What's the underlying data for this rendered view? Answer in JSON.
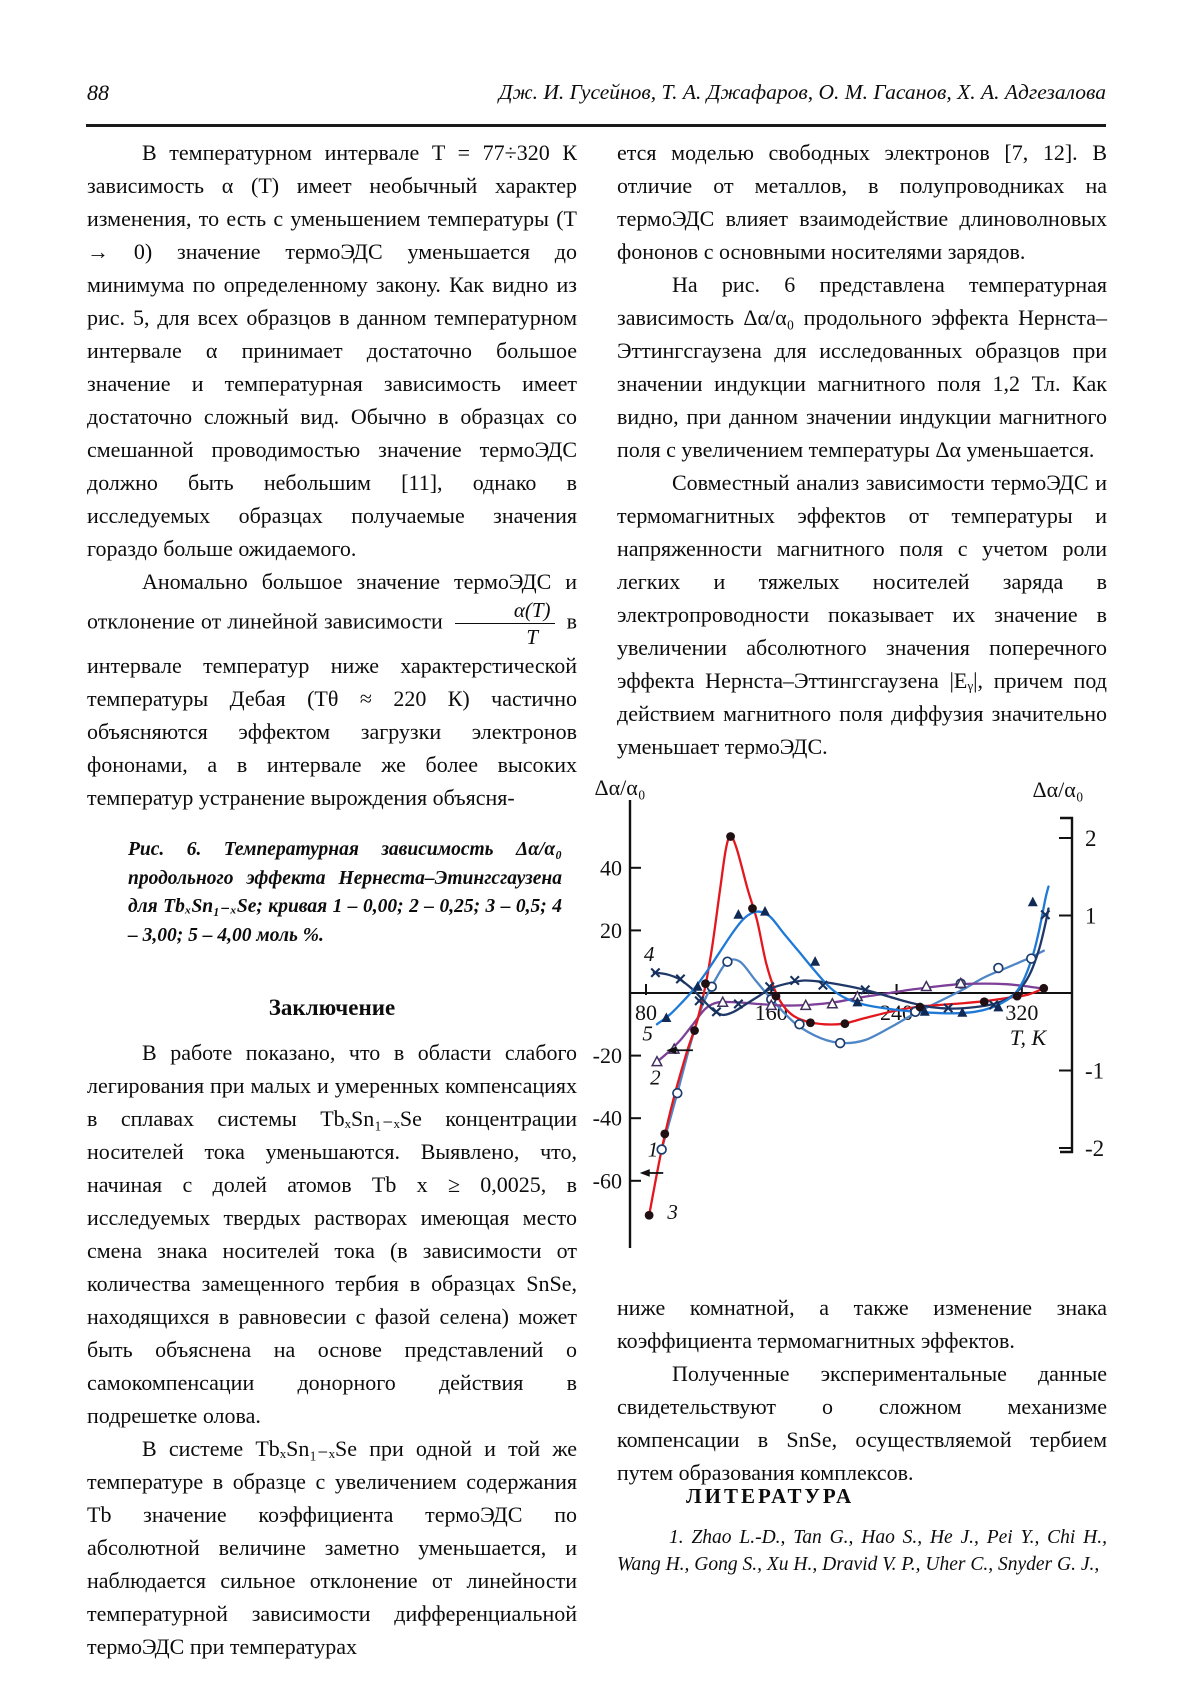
{
  "header": {
    "page_number": "88",
    "authors": "Дж. И. Гусейнов, Т. А. Джафаров, О. М. Гасанов, Х. А. Адгезалова"
  },
  "left_column": {
    "p1": "В температурном интервале T = 77÷320 К зависимость α (T) имеет необычный характер изменения, то есть с уменьшением температуры (T → 0) значение термоЭДС уменьшается до минимума по определенному закону. Как видно из рис. 5, для всех образцов в данном температурном интервале α принимает достаточно большое значение и температурная зависимость имеет достаточно сложный вид. Обычно в образцах со смешанной проводимостью значение термоЭДС должно быть небольшим [11], однако в исследуемых образцах получаемые значения гораздо больше ожидаемого.",
    "p2_before": "Аномально большое значение термоЭДС и отклонение от линейной зависимости",
    "fraction": {
      "numerator": "α(T)",
      "denominator": "T"
    },
    "p2_after": "в интервале температур ниже характерстической температуры Дебая (Tθ ≈ 220 К) частично объясняются эффектом загрузки электронов фононами, а в интервале же более высоких температур устранение вырождения объясня-",
    "figure_caption": "Рис. 6. Температурная зависимость Δα/α₀ продольного эффекта Нернеста–Этингсгаузена для TbₓSn₁₋ₓSe; кривая 1 – 0,00; 2 – 0,25; 3 – 0,5; 4 – 3,00; 5 – 4,00 моль %.",
    "conclusion_heading": "Заключение",
    "c1": "В работе показано, что в области слабого легирования при малых и умеренных компенсациях в сплавах системы TbₓSn₁₋ₓSe концентрации носителей тока уменьшаются. Выявлено, что, начиная с долей атомов Tb x ≥ 0,0025, в исследуемых твердых растворах имеющая место смена знака носителей тока (в зависимости от количества замещенного тербия в образцах SnSe, находящихся в равновесии с фазой селена) может быть объяснена на основе представлений о самокомпенсации донорного действия в подрешетке олова.",
    "c2": "В системе TbₓSn₁₋ₓSe при одной и той же температуре в образце с увеличением содержания Tb значение коэффициента термоЭДС по абсолютной величине заметно уменьшается, и наблюдается сильное отклонение от линейности температурной зависимости дифференциальной термоЭДС при температурах"
  },
  "right_column": {
    "r1": "ется моделью свободных электронов [7, 12]. В отличие от металлов, в полупроводниках на термоЭДС влияет взаимодействие длиноволновых фононов с основными носителями зарядов.",
    "r2": "На рис. 6 представлена температурная зависимость Δα/α₀ продольного эффекта Нернста–Эттингсгаузена для исследованных образцов при значении индукции магнитного поля 1,2 Тл. Как видно, при данном значении индукции магнитного поля с увеличением температуры Δα уменьшается.",
    "r3": "Совместный анализ зависимости термоЭДС и термомагнитных эффектов от температуры и напряженности магнитного поля с учетом роли легких и тяжелых носителей заряда в электропроводности показывает их значение в увеличении абсолютного значения поперечного эффекта Нернста–Эттингсгаузена |Eᵧ|, причем под действием магнитного поля диффузия значительно уменьшает термоЭДС.",
    "r4": "ниже комнатной, а также изменение знака коэффициента термомагнитных эффектов.",
    "r5": "Полученные экспериментальные данные свидетельствуют о сложном механизме компенсации в SnSe, осуществляемой тербием путем образования комплексов.",
    "literature_heading": "ЛИТЕРАТУРА",
    "reference_1": "1. Zhao L.-D., Tan G., Hao S., He J., Pei Y., Chi H., Wang H., Gong S., Xu H., Dravid V. P., Uher C., Snyder G. J.,"
  },
  "chart_data": {
    "type": "line",
    "title": "Температурная зависимость Δα/α₀ продольного эффекта Нернста–Эттингсгаузена для TbxSn1-xSe",
    "xlabel": "T, K",
    "ylabel_left": "Δα/α₀",
    "ylabel_right": "Δα/α₀",
    "x_ticks": [
      80,
      160,
      240,
      320
    ],
    "x_range": [
      70,
      352
    ],
    "y_left_ticks": [
      40,
      20,
      -20,
      -40,
      -60
    ],
    "y_left_range": [
      -78,
      55
    ],
    "y_right_ticks": [
      2,
      1,
      -1,
      -2
    ],
    "y_right_range": [
      -2.3,
      2.3
    ],
    "grid": false,
    "legend": "curve numbers printed beside curves",
    "series": [
      {
        "name": "1 – 0,00 моль %",
        "label": "1",
        "color": "#4f86c6",
        "marker": "open-circle",
        "marker_color": "#1d3c6e",
        "points": [
          [
            90,
            -50
          ],
          [
            100,
            -32
          ],
          [
            108,
            -17
          ],
          [
            116,
            -4
          ],
          [
            124,
            4
          ],
          [
            132,
            10
          ],
          [
            140,
            10
          ],
          [
            150,
            4
          ],
          [
            162,
            -3
          ],
          [
            176,
            -10
          ],
          [
            192,
            -14.5
          ],
          [
            206,
            -16
          ],
          [
            220,
            -15
          ],
          [
            236,
            -11
          ],
          [
            250,
            -7
          ],
          [
            266,
            -3
          ],
          [
            282,
            1
          ],
          [
            296,
            5
          ],
          [
            310,
            8
          ],
          [
            324,
            11
          ],
          [
            334,
            13.5
          ]
        ],
        "marker_points": [
          [
            90,
            -50
          ],
          [
            100,
            -32
          ],
          [
            122,
            2
          ],
          [
            132,
            10
          ],
          [
            160,
            -2
          ],
          [
            178,
            -10
          ],
          [
            204,
            -16
          ],
          [
            252,
            -6
          ],
          [
            281,
            3
          ],
          [
            305,
            8
          ],
          [
            326,
            11
          ]
        ]
      },
      {
        "name": "2 – 0,25 моль %",
        "label": "2",
        "color": "#7d3f98",
        "marker": "open-triangle",
        "marker_color": "#40305c",
        "points": [
          [
            87,
            -22
          ],
          [
            94,
            -19
          ],
          [
            102,
            -15
          ],
          [
            110,
            -10
          ],
          [
            118,
            -5
          ],
          [
            126,
            -3
          ],
          [
            138,
            -3
          ],
          [
            152,
            -3.5
          ],
          [
            168,
            -4
          ],
          [
            184,
            -3.8
          ],
          [
            200,
            -3
          ],
          [
            216,
            -1.5
          ],
          [
            232,
            -0.3
          ],
          [
            248,
            1
          ],
          [
            264,
            2
          ],
          [
            280,
            2.8
          ],
          [
            296,
            3
          ],
          [
            310,
            2.8
          ],
          [
            322,
            2.2
          ],
          [
            332,
            1.5
          ]
        ],
        "marker_points": [
          [
            87,
            -22
          ],
          [
            98,
            -18
          ],
          [
            129,
            -3
          ],
          [
            160,
            -4
          ],
          [
            182,
            -4
          ],
          [
            199,
            -3.5
          ],
          [
            215,
            -1.2
          ],
          [
            259,
            2
          ],
          [
            281,
            3
          ]
        ]
      },
      {
        "name": "3 – 0,5 моль %",
        "label": "3",
        "color": "#e2181e",
        "marker": "filled-circle",
        "marker_color": "#201014",
        "points": [
          [
            82,
            -71
          ],
          [
            90,
            -50
          ],
          [
            98,
            -33
          ],
          [
            106,
            -19
          ],
          [
            112,
            -10
          ],
          [
            117,
            0
          ],
          [
            122,
            14
          ],
          [
            127,
            32
          ],
          [
            131,
            46
          ],
          [
            134,
            50
          ],
          [
            138,
            46
          ],
          [
            145,
            33
          ],
          [
            151,
            23
          ],
          [
            157,
            9
          ],
          [
            164,
            -1
          ],
          [
            172,
            -6.5
          ],
          [
            182,
            -9
          ],
          [
            194,
            -10
          ],
          [
            206,
            -9.8
          ],
          [
            220,
            -8
          ],
          [
            236,
            -6
          ],
          [
            252,
            -4.5
          ],
          [
            268,
            -3.8
          ],
          [
            284,
            -3.2
          ],
          [
            298,
            -2.5
          ],
          [
            312,
            -1.5
          ],
          [
            324,
            -0.5
          ],
          [
            334,
            1.5
          ]
        ],
        "marker_points": [
          [
            82,
            -71
          ],
          [
            92,
            -45
          ],
          [
            111,
            -12
          ],
          [
            118,
            3
          ],
          [
            134,
            50
          ],
          [
            148,
            27
          ],
          [
            163,
            -1
          ],
          [
            185,
            -9.5
          ],
          [
            207,
            -9.8
          ],
          [
            255,
            -4.5
          ],
          [
            296,
            -2.8
          ],
          [
            317,
            -1
          ],
          [
            334,
            1.5
          ]
        ]
      },
      {
        "name": "4 – 3,00 моль %",
        "label": "4",
        "color": "#1f3868",
        "marker": "x",
        "marker_color": "#16305e",
        "points": [
          [
            85,
            6.5
          ],
          [
            93,
            6
          ],
          [
            101,
            4.5
          ],
          [
            109,
            1.5
          ],
          [
            116,
            -2
          ],
          [
            123,
            -5.5
          ],
          [
            129,
            -7
          ],
          [
            136,
            -6
          ],
          [
            144,
            -3.5
          ],
          [
            152,
            -1
          ],
          [
            160,
            1.5
          ],
          [
            170,
            3
          ],
          [
            181,
            4
          ],
          [
            193,
            3.5
          ],
          [
            206,
            2.5
          ],
          [
            220,
            1
          ],
          [
            234,
            -1
          ],
          [
            248,
            -3
          ],
          [
            262,
            -4.5
          ],
          [
            276,
            -5
          ],
          [
            290,
            -4.5
          ],
          [
            302,
            -3.5
          ],
          [
            312,
            -1.5
          ],
          [
            320,
            2
          ],
          [
            326,
            7
          ],
          [
            331,
            14
          ],
          [
            335,
            22
          ],
          [
            337,
            27
          ]
        ],
        "marker_points": [
          [
            86,
            6.5
          ],
          [
            102,
            4.5
          ],
          [
            114,
            -2.5
          ],
          [
            125,
            -6
          ],
          [
            139,
            -3.5
          ],
          [
            159,
            2
          ],
          [
            175,
            4
          ],
          [
            193,
            2.5
          ],
          [
            220,
            1
          ],
          [
            273,
            -4.8
          ],
          [
            302,
            -3.8
          ],
          [
            335,
            25
          ]
        ]
      },
      {
        "name": "5 – 4,00 моль %",
        "label": "5",
        "color": "#1e7ad6",
        "marker": "filled-triangle",
        "marker_color": "#0e2a55",
        "points": [
          [
            87,
            -10
          ],
          [
            95,
            -7
          ],
          [
            103,
            -3
          ],
          [
            111,
            1.5
          ],
          [
            119,
            7
          ],
          [
            127,
            13
          ],
          [
            135,
            19
          ],
          [
            143,
            24
          ],
          [
            151,
            26
          ],
          [
            159,
            24.5
          ],
          [
            168,
            19
          ],
          [
            178,
            13
          ],
          [
            188,
            7
          ],
          [
            198,
            1.5
          ],
          [
            208,
            -1.8
          ],
          [
            220,
            -3.8
          ],
          [
            234,
            -5
          ],
          [
            248,
            -5.8
          ],
          [
            262,
            -6.3
          ],
          [
            276,
            -6.5
          ],
          [
            290,
            -6
          ],
          [
            300,
            -4.8
          ],
          [
            308,
            -3
          ],
          [
            315,
            -0.5
          ],
          [
            321,
            4
          ],
          [
            327,
            12
          ],
          [
            331,
            20
          ],
          [
            335,
            30
          ],
          [
            337,
            34
          ]
        ],
        "marker_points": [
          [
            93,
            -8
          ],
          [
            113,
            2
          ],
          [
            139,
            25
          ],
          [
            156,
            26
          ],
          [
            188,
            10
          ],
          [
            215,
            -3
          ],
          [
            258,
            -6
          ],
          [
            282,
            -6.3
          ],
          [
            305,
            -4.6
          ],
          [
            327,
            29
          ]
        ]
      }
    ],
    "curve_labels": [
      {
        "text": "4",
        "t": 82,
        "v": 12.5
      },
      {
        "text": "5",
        "t": 81,
        "v": -13
      },
      {
        "text": "2",
        "t": 86,
        "v": -27
      },
      {
        "text": "1",
        "t": 84.5,
        "v": -50
      },
      {
        "text": "3",
        "t": 97,
        "v": -70
      }
    ],
    "arrows": [
      {
        "t_from": 110,
        "t_to": 93,
        "v": -18.3
      },
      {
        "t_from": 91,
        "t_to": 76,
        "v": -57.5
      }
    ]
  }
}
